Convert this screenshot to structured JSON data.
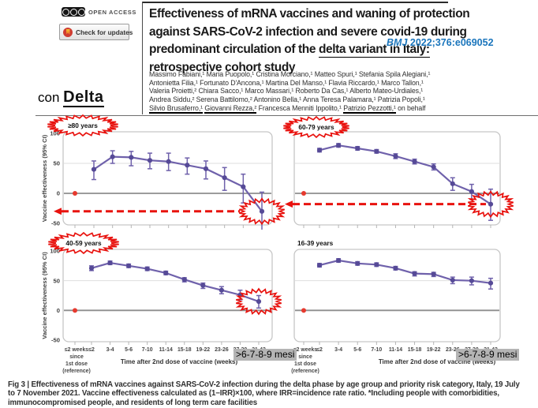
{
  "header": {
    "open_access_label": "OPEN ACCESS",
    "check_updates_label": "Check for updates",
    "icons": {
      "license": "cc-license-icon",
      "updates": "crossmark-icon"
    },
    "title_lines": [
      "Effectiveness of mRNA vaccines and waning of protection",
      "against SARS-CoV-2 infection and severe covid-19 during"
    ],
    "title_line3_prefix": "predominant circulation of the ",
    "title_line3_underlined": "delta variant in Italy:",
    "title_line4": "retrospective cohort study",
    "citation": {
      "journal": "BMJ",
      "reference": " 2022;376:e069052",
      "color": "#1a75bc"
    },
    "side_note": {
      "prefix": "con ",
      "highlight": "Delta"
    }
  },
  "authors": {
    "lines": [
      "Massimo Fabiani,¹ Maria Puopolo,¹ Cristina Morciano,¹ Matteo Spuri,¹ Stefania Spila Alegiani,¹",
      "Antonietta Filia,¹ Fortunato D'Ancona,¹ Martina Del Manso,¹ Flavia Riccardo,¹ Marco Tallon,¹",
      "Valeria Proietti,² Chiara Sacco,¹ Marco Massari,¹ Roberto Da Cas,¹ Alberto Mateo-Urdiales,¹",
      "Andrea Siddu,² Serena Battilomo,² Antonino Bella,¹ Anna Teresa Palamara,¹ Patrizia Popoli,¹"
    ],
    "last_line": [
      {
        "t": "Silvio Brusaferro,¹",
        "u": true
      },
      {
        "t": " ",
        "u": false
      },
      {
        "t": "Giovanni Rezza,²",
        "u": true
      },
      {
        "t": " Francesca Menniti Ippolito,¹ ",
        "u": false
      },
      {
        "t": "Patrizio Pezzotti,¹",
        "u": true
      },
      {
        "t": " on behalf",
        "u": false
      }
    ]
  },
  "figure": {
    "highlight_labels": [
      ">6-7-8-9 mesi",
      ">6-7-8-9 mesi"
    ],
    "highlight_color": "#b4b4b4"
  },
  "chart_data": [
    {
      "type": "line",
      "title": "≥80 years",
      "x_categories": [
        "≤2",
        "3-4",
        "5-6",
        "7-10",
        "11-14",
        "15-18",
        "19-22",
        "23-26",
        "27-30",
        "31-42"
      ],
      "reference_label": [
        "≤2 weeks",
        "since",
        "1st dose",
        "(reference)"
      ],
      "reference_point": {
        "x": "≤2 weeks since 1st dose",
        "y": 0
      },
      "values": [
        40,
        61,
        60,
        55,
        53,
        47,
        41,
        26,
        11,
        -30
      ],
      "ci_low": [
        23,
        50,
        46,
        41,
        38,
        32,
        24,
        5,
        -16,
        -72
      ],
      "ci_high": [
        54,
        71,
        70,
        67,
        67,
        59,
        54,
        43,
        32,
        2
      ],
      "ylabel": "Vaccine effectiveness (95% CI)",
      "xlabel": "",
      "yticks": [
        100,
        50,
        0,
        -50
      ],
      "ylim": [
        -50,
        100
      ],
      "annotations": {
        "title_circled": true,
        "last_point_circled": true,
        "dashed_arrow_to_last_point": true
      }
    },
    {
      "type": "line",
      "title": "60-79 years",
      "x_categories": [
        "≤2",
        "3-4",
        "5-6",
        "7-10",
        "11-14",
        "15-18",
        "19-22",
        "23-26",
        "27-30",
        "31-42"
      ],
      "reference_label": [
        "≤2 weeks",
        "since",
        "1st dose",
        "(reference)"
      ],
      "reference_point": {
        "x": "≤2 weeks since 1st dose",
        "y": 0
      },
      "values": [
        72,
        80,
        75,
        70,
        62,
        53,
        44,
        16,
        3,
        -18
      ],
      "ci_low": [
        69,
        77,
        72,
        67,
        58,
        49,
        39,
        5,
        -10,
        -45
      ],
      "ci_high": [
        75,
        83,
        78,
        73,
        66,
        57,
        49,
        26,
        15,
        7
      ],
      "ylabel": "",
      "xlabel": "",
      "yticks": [
        100,
        50,
        0,
        -50
      ],
      "ylim": [
        -50,
        100
      ],
      "annotations": {
        "title_circled": true,
        "last_point_circled": true,
        "dashed_arrow_to_last_point": true
      }
    },
    {
      "type": "line",
      "title": "40-59 years",
      "x_categories": [
        "≤2",
        "3-4",
        "5-6",
        "7-10",
        "11-14",
        "15-18",
        "19-22",
        "23-26",
        "27-30",
        "31-42"
      ],
      "reference_label": [
        "≤2 weeks",
        "since",
        "1st dose",
        "(reference)"
      ],
      "reference_point": {
        "x": "≤2 weeks since 1st dose",
        "y": 0
      },
      "values": [
        71,
        80,
        75,
        70,
        63,
        52,
        42,
        34,
        26,
        15
      ],
      "ci_low": [
        67,
        77,
        72,
        67,
        60,
        48,
        37,
        28,
        18,
        4
      ],
      "ci_high": [
        75,
        83,
        78,
        73,
        66,
        55,
        46,
        40,
        34,
        25
      ],
      "ylabel": "Vaccine effectiveness (95% CI)",
      "xlabel": "Time after 2nd dose of vaccine (weeks)",
      "yticks": [
        100,
        50,
        0,
        -50
      ],
      "ylim": [
        -50,
        100
      ],
      "annotations": {
        "title_circled": true,
        "last_point_circled": true,
        "dashed_arrow_to_last_point": false
      }
    },
    {
      "type": "line",
      "title": "16-39 years",
      "x_categories": [
        "≤2",
        "3-4",
        "5-6",
        "7-10",
        "11-14",
        "15-18",
        "19-22",
        "23-26",
        "27-30",
        "31-42"
      ],
      "reference_label": [
        "≤2 weeks",
        "since",
        "1st dose",
        "(reference)"
      ],
      "reference_point": {
        "x": "≤2 weeks since 1st dose",
        "y": 0
      },
      "values": [
        76,
        84,
        79,
        77,
        71,
        62,
        61,
        51,
        50,
        46
      ],
      "ci_low": [
        73,
        81,
        76,
        74,
        68,
        58,
        57,
        45,
        43,
        36
      ],
      "ci_high": [
        79,
        87,
        82,
        80,
        74,
        65,
        64,
        56,
        56,
        54
      ],
      "ylabel": "",
      "xlabel": "Time after 2nd dose of vaccine (weeks)",
      "yticks": [
        100,
        50,
        0,
        -50
      ],
      "ylim": [
        -50,
        100
      ],
      "annotations": {
        "title_circled": false,
        "last_point_circled": false,
        "dashed_arrow_to_last_point": false
      }
    }
  ],
  "caption_lines": [
    "Fig 3 | Effectiveness of mRNA vaccines against SARS-CoV-2 infection during the delta phase by age group and priority risk category, Italy, 19 July",
    "to 7 November 2021. Vaccine effectiveness calculated as (1−IRR)×100, where IRR=incidence rate ratio. *Including people with comorbidities,",
    "immunocompromised people, and residents of long term care facilities"
  ],
  "colors": {
    "series_purple": "#6f61ab",
    "point_purple": "#564a97",
    "annotation_red": "#e8120e",
    "reference_dot_red": "#e6392e",
    "grid_light": "#dedede",
    "zero_line_gray": "#8e8e8e",
    "box_border": "#c6c6c6"
  }
}
